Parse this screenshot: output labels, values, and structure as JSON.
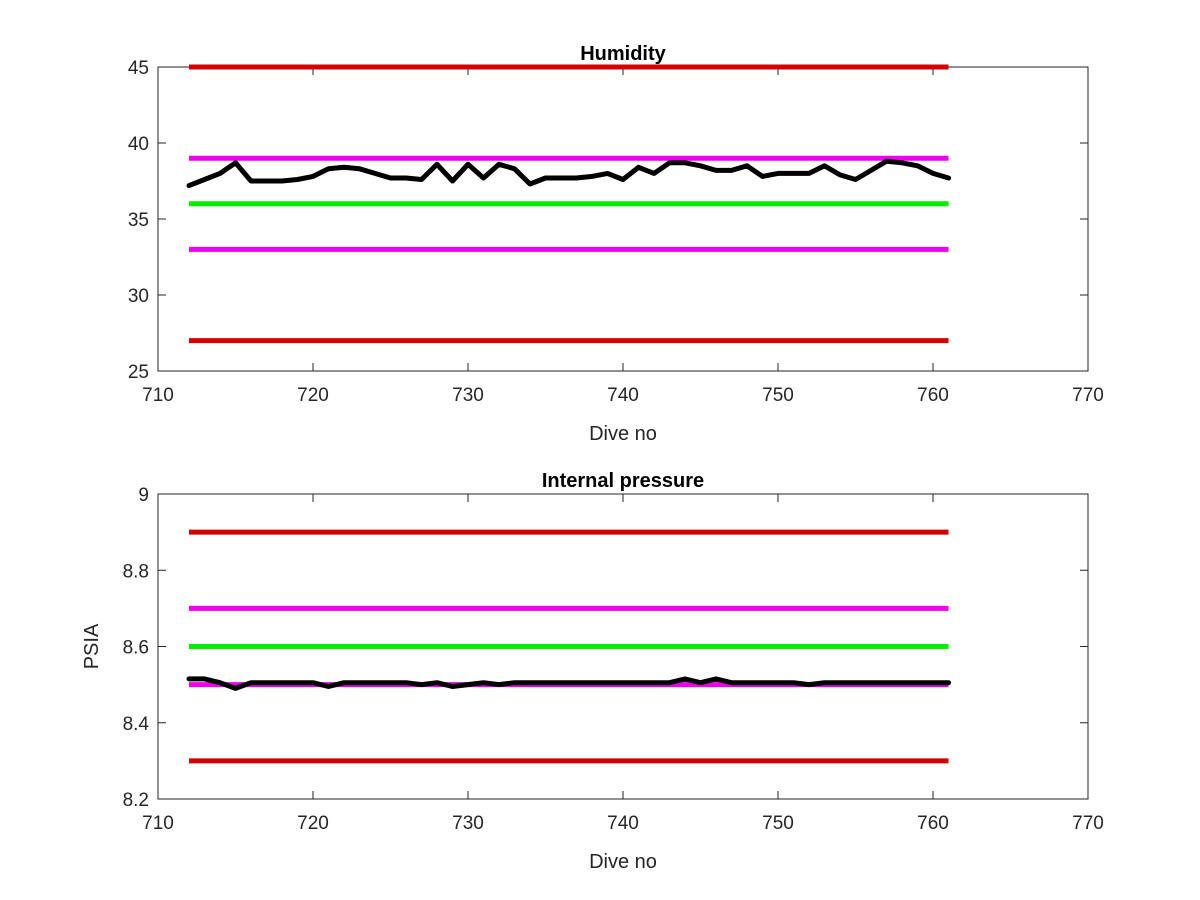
{
  "colors": {
    "red": "#d40000",
    "magenta": "#ee00ee",
    "green": "#00ee00",
    "data": "#000000",
    "axis": "#262626"
  },
  "chart_data": [
    {
      "type": "line",
      "title": "Humidity",
      "xlabel": "Dive no",
      "ylabel": "",
      "xlim": [
        710,
        770
      ],
      "ylim": [
        25,
        45
      ],
      "xticks": [
        710,
        720,
        730,
        740,
        750,
        760,
        770
      ],
      "yticks": [
        25,
        30,
        35,
        40,
        45
      ],
      "grid": false,
      "reference_lines": [
        {
          "y": 45,
          "x": [
            712,
            761
          ],
          "color": "red"
        },
        {
          "y": 39,
          "x": [
            712,
            761
          ],
          "color": "magenta"
        },
        {
          "y": 36,
          "x": [
            712,
            761
          ],
          "color": "green"
        },
        {
          "y": 33,
          "x": [
            712,
            761
          ],
          "color": "magenta"
        },
        {
          "y": 27,
          "x": [
            712,
            761
          ],
          "color": "red"
        }
      ],
      "series": [
        {
          "x": [
            712,
            713,
            714,
            715,
            716,
            717,
            718,
            719,
            720,
            721,
            722,
            723,
            724,
            725,
            726,
            727,
            728,
            729,
            730,
            731,
            732,
            733,
            734,
            735,
            736,
            737,
            738,
            739,
            740,
            741,
            742,
            743,
            744,
            745,
            746,
            747,
            748,
            749,
            750,
            751,
            752,
            753,
            754,
            755,
            756,
            757,
            758,
            759,
            760,
            761
          ],
          "y": [
            37.2,
            37.6,
            38.0,
            38.7,
            37.5,
            37.5,
            37.5,
            37.6,
            37.8,
            38.3,
            38.4,
            38.3,
            38.0,
            37.7,
            37.7,
            37.6,
            38.6,
            37.5,
            38.6,
            37.7,
            38.6,
            38.3,
            37.3,
            37.7,
            37.7,
            37.7,
            37.8,
            38.0,
            37.6,
            38.4,
            38.0,
            38.7,
            38.7,
            38.5,
            38.2,
            38.2,
            38.5,
            37.8,
            38.0,
            38.0,
            38.0,
            38.5,
            37.9,
            37.6,
            38.2,
            38.8,
            38.7,
            38.5,
            38.0,
            37.7
          ]
        }
      ]
    },
    {
      "type": "line",
      "title": "Internal pressure",
      "xlabel": "Dive no",
      "ylabel": "PSIA",
      "xlim": [
        710,
        770
      ],
      "ylim": [
        8.2,
        9
      ],
      "xticks": [
        710,
        720,
        730,
        740,
        750,
        760,
        770
      ],
      "yticks": [
        8.2,
        8.4,
        8.6,
        8.8,
        9
      ],
      "grid": false,
      "reference_lines": [
        {
          "y": 8.9,
          "x": [
            712,
            761
          ],
          "color": "red"
        },
        {
          "y": 8.7,
          "x": [
            712,
            761
          ],
          "color": "magenta"
        },
        {
          "y": 8.6,
          "x": [
            712,
            761
          ],
          "color": "green"
        },
        {
          "y": 8.5,
          "x": [
            712,
            761
          ],
          "color": "magenta"
        },
        {
          "y": 8.3,
          "x": [
            712,
            761
          ],
          "color": "red"
        }
      ],
      "series": [
        {
          "x": [
            712,
            713,
            714,
            715,
            716,
            717,
            718,
            719,
            720,
            721,
            722,
            723,
            724,
            725,
            726,
            727,
            728,
            729,
            730,
            731,
            732,
            733,
            734,
            735,
            736,
            737,
            738,
            739,
            740,
            741,
            742,
            743,
            744,
            745,
            746,
            747,
            748,
            749,
            750,
            751,
            752,
            753,
            754,
            755,
            756,
            757,
            758,
            759,
            760,
            761
          ],
          "y": [
            8.515,
            8.515,
            8.505,
            8.49,
            8.505,
            8.505,
            8.505,
            8.505,
            8.505,
            8.495,
            8.505,
            8.505,
            8.505,
            8.505,
            8.505,
            8.5,
            8.505,
            8.495,
            8.5,
            8.505,
            8.5,
            8.505,
            8.505,
            8.505,
            8.505,
            8.505,
            8.505,
            8.505,
            8.505,
            8.505,
            8.505,
            8.505,
            8.515,
            8.505,
            8.515,
            8.505,
            8.505,
            8.505,
            8.505,
            8.505,
            8.5,
            8.505,
            8.505,
            8.505,
            8.505,
            8.505,
            8.505,
            8.505,
            8.505,
            8.505
          ]
        }
      ]
    }
  ]
}
